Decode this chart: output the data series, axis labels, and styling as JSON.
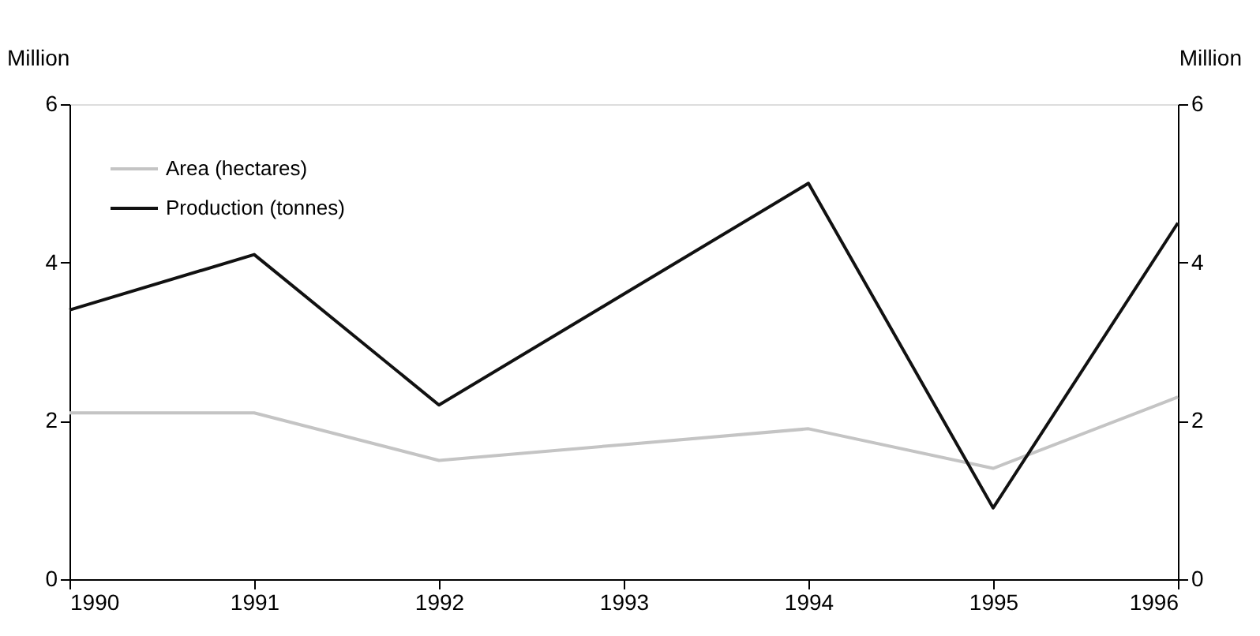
{
  "chart_data": {
    "type": "line",
    "ylabel": "Million",
    "y2label": "Million",
    "x": [
      1990,
      1991,
      1992,
      1993,
      1994,
      1995,
      1996
    ],
    "series": [
      {
        "name": "Area (hectares)",
        "color": "#c4c4c4",
        "values": [
          2.1,
          2.1,
          1.5,
          1.7,
          1.9,
          1.4,
          2.3
        ]
      },
      {
        "name": "Production (tonnes)",
        "color": "#111111",
        "values": [
          3.4,
          4.1,
          2.2,
          3.6,
          5.0,
          0.9,
          4.5
        ]
      }
    ],
    "xlim": [
      1990,
      1996
    ],
    "xticks": [
      1990,
      1991,
      1992,
      1993,
      1994,
      1995,
      1996
    ],
    "ylim": [
      0,
      6
    ],
    "yticks": [
      0,
      2,
      4,
      6
    ],
    "y2lim": [
      0,
      6
    ],
    "y2ticks": [
      0,
      2,
      4,
      6
    ],
    "grid": false,
    "legend": "top left",
    "marker": "none",
    "line_style": "solid"
  }
}
